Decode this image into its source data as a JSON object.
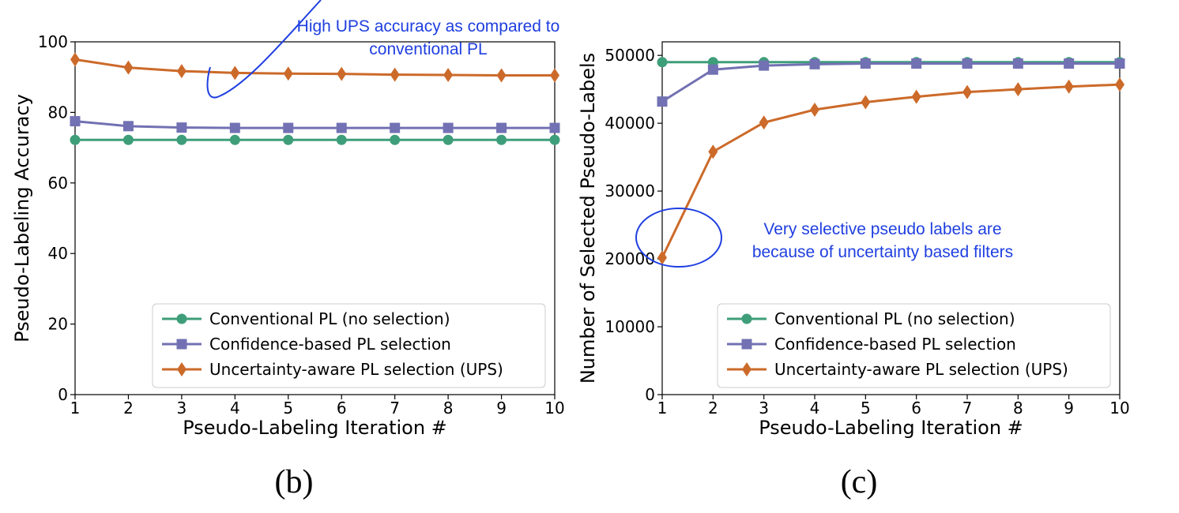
{
  "colors": {
    "conventional": "#3f9e7a",
    "confidence": "#7271b3",
    "ups": "#cc6a2a",
    "annotation": "#1f3fe0"
  },
  "chart_data": [
    {
      "type": "line",
      "caption": "(b)",
      "xlabel": "Pseudo-Labeling Iteration #",
      "ylabel": "Pseudo-Labeling Accuracy",
      "xlim": [
        1,
        10
      ],
      "ylim": [
        0,
        100
      ],
      "xticks": [
        "1",
        "2",
        "3",
        "4",
        "5",
        "6",
        "7",
        "8",
        "9",
        "10"
      ],
      "yticks": [
        "0",
        "20",
        "40",
        "60",
        "80",
        "100"
      ],
      "x": [
        1,
        2,
        3,
        4,
        5,
        6,
        7,
        8,
        9,
        10
      ],
      "legend_position": "lower-right",
      "series": [
        {
          "name": "Conventional PL (no selection)",
          "marker": "circle",
          "color_key": "conventional",
          "values": [
            72.2,
            72.2,
            72.2,
            72.2,
            72.2,
            72.2,
            72.2,
            72.2,
            72.2,
            72.2
          ]
        },
        {
          "name": "Confidence-based PL selection",
          "marker": "square",
          "color_key": "confidence",
          "values": [
            77.5,
            76.1,
            75.7,
            75.6,
            75.6,
            75.6,
            75.6,
            75.6,
            75.6,
            75.6
          ]
        },
        {
          "name": "Uncertainty-aware PL selection (UPS)",
          "marker": "diamond",
          "color_key": "ups",
          "values": [
            95.0,
            92.7,
            91.7,
            91.2,
            91.0,
            90.9,
            90.7,
            90.6,
            90.5,
            90.5
          ]
        }
      ],
      "annotation": {
        "lines": [
          "High UPS accuracy as compared to",
          "conventional PL"
        ]
      }
    },
    {
      "type": "line",
      "caption": "(c)",
      "xlabel": "Pseudo-Labeling Iteration #",
      "ylabel": "Number of Selected Pseudo-Labels",
      "xlim": [
        1,
        10
      ],
      "ylim": [
        0,
        52000
      ],
      "xticks": [
        "1",
        "2",
        "3",
        "4",
        "5",
        "6",
        "7",
        "8",
        "9",
        "10"
      ],
      "yticks": [
        "0",
        "10000",
        "20000",
        "30000",
        "40000",
        "50000"
      ],
      "x": [
        1,
        2,
        3,
        4,
        5,
        6,
        7,
        8,
        9,
        10
      ],
      "legend_position": "lower-right",
      "series": [
        {
          "name": "Conventional PL (no selection)",
          "marker": "circle",
          "color_key": "conventional",
          "values": [
            49000,
            49000,
            49000,
            49000,
            49000,
            49000,
            49000,
            49000,
            49000,
            49000
          ]
        },
        {
          "name": "Confidence-based PL selection",
          "marker": "square",
          "color_key": "confidence",
          "values": [
            43200,
            47900,
            48500,
            48700,
            48800,
            48800,
            48800,
            48800,
            48800,
            48800
          ]
        },
        {
          "name": "Uncertainty-aware PL selection (UPS)",
          "marker": "diamond",
          "color_key": "ups",
          "values": [
            20200,
            35800,
            40100,
            42000,
            43100,
            43900,
            44600,
            45000,
            45400,
            45700
          ]
        }
      ],
      "annotation": {
        "lines": [
          "Very selective pseudo labels are",
          "because of uncertainty based filters"
        ]
      }
    }
  ]
}
